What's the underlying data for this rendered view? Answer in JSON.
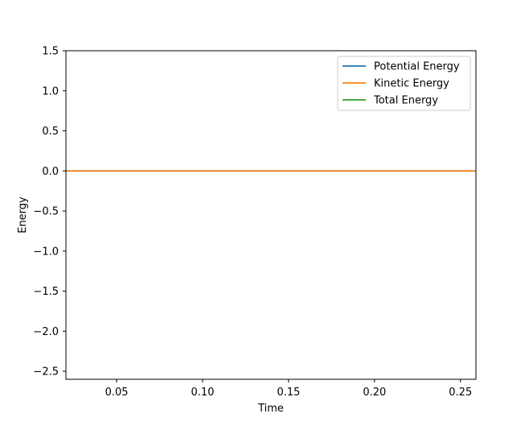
{
  "chart_data": {
    "type": "line",
    "title": "",
    "xlabel": "Time",
    "ylabel": "Energy",
    "xlim": [
      0.0205,
      0.259
    ],
    "ylim": [
      -2.6,
      1.5
    ],
    "xticks": [
      0.05,
      0.1,
      0.15,
      0.2,
      0.25
    ],
    "xtick_labels": [
      "0.05",
      "0.10",
      "0.15",
      "0.20",
      "0.25"
    ],
    "yticks": [
      1.5,
      1.0,
      0.5,
      0.0,
      -0.5,
      -1.0,
      -1.5,
      -2.0,
      -2.5
    ],
    "ytick_labels": [
      "1.5",
      "1.0",
      "0.5",
      "0.0",
      "−0.5",
      "−1.0",
      "−1.5",
      "−2.0",
      "−2.5"
    ],
    "grid": false,
    "legend_position": "top-right",
    "series": [
      {
        "name": "Potential Energy",
        "color": "#1f77b4",
        "x": [
          0.0205,
          0.259
        ],
        "y": [
          0.0,
          0.0
        ]
      },
      {
        "name": "Kinetic Energy",
        "color": "#ff7f0e",
        "x": [
          0.0205,
          0.259
        ],
        "y": [
          0.0,
          0.0
        ]
      },
      {
        "name": "Total Energy",
        "color": "#2ca02c",
        "x": [],
        "y": []
      }
    ]
  }
}
